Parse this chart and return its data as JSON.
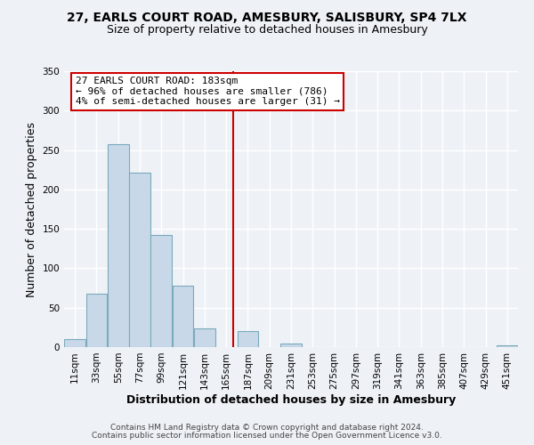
{
  "title": "27, EARLS COURT ROAD, AMESBURY, SALISBURY, SP4 7LX",
  "subtitle": "Size of property relative to detached houses in Amesbury",
  "xlabel": "Distribution of detached houses by size in Amesbury",
  "ylabel": "Number of detached properties",
  "bin_labels": [
    "11sqm",
    "33sqm",
    "55sqm",
    "77sqm",
    "99sqm",
    "121sqm",
    "143sqm",
    "165sqm",
    "187sqm",
    "209sqm",
    "231sqm",
    "253sqm",
    "275sqm",
    "297sqm",
    "319sqm",
    "341sqm",
    "363sqm",
    "385sqm",
    "407sqm",
    "429sqm",
    "451sqm"
  ],
  "bin_edges": [
    11,
    33,
    55,
    77,
    99,
    121,
    143,
    165,
    187,
    209,
    231,
    253,
    275,
    297,
    319,
    341,
    363,
    385,
    407,
    429,
    451
  ],
  "bar_heights": [
    10,
    68,
    257,
    221,
    142,
    78,
    24,
    0,
    20,
    0,
    5,
    0,
    0,
    0,
    0,
    0,
    0,
    0,
    0,
    0,
    2
  ],
  "bar_color": "#c8d8e8",
  "bar_edge_color": "#7aaabb",
  "vline_x": 183,
  "vline_color": "#cc0000",
  "ylim": [
    0,
    350
  ],
  "yticks": [
    0,
    50,
    100,
    150,
    200,
    250,
    300,
    350
  ],
  "annotation_title": "27 EARLS COURT ROAD: 183sqm",
  "annotation_line1": "← 96% of detached houses are smaller (786)",
  "annotation_line2": "4% of semi-detached houses are larger (31) →",
  "annotation_box_color": "#ffffff",
  "annotation_box_edge": "#cc0000",
  "footer1": "Contains HM Land Registry data © Crown copyright and database right 2024.",
  "footer2": "Contains public sector information licensed under the Open Government Licence v3.0.",
  "bg_color": "#eef2f7",
  "grid_color": "#ffffff",
  "title_fontsize": 10,
  "subtitle_fontsize": 9,
  "axis_label_fontsize": 9,
  "tick_fontsize": 7.5,
  "footer_fontsize": 6.5
}
